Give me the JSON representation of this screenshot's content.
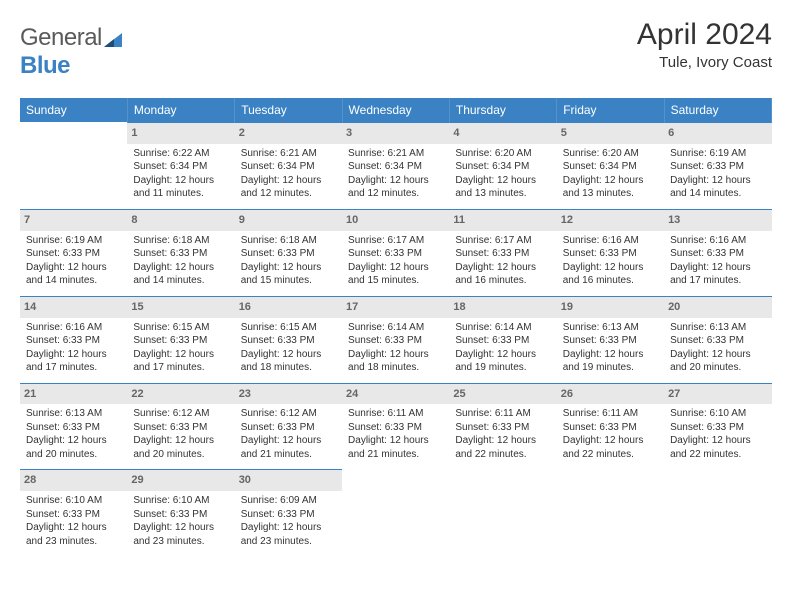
{
  "brand": {
    "word1": "General",
    "word2": "Blue"
  },
  "title": "April 2024",
  "location": "Tule, Ivory Coast",
  "colors": {
    "header_bg": "#3b82c4",
    "header_text": "#ffffff",
    "daynum_bg": "#e8e8e8",
    "daynum_text": "#666666",
    "border": "#3b82c4",
    "body_text": "#333333",
    "logo_gray": "#5a5a5a",
    "logo_blue": "#3b82c4",
    "page_bg": "#ffffff"
  },
  "fonts": {
    "title_pt": 30,
    "location_pt": 15,
    "weekday_pt": 12,
    "daynum_pt": 11,
    "cell_pt": 10
  },
  "weekdays": [
    "Sunday",
    "Monday",
    "Tuesday",
    "Wednesday",
    "Thursday",
    "Friday",
    "Saturday"
  ],
  "weeks": [
    [
      null,
      {
        "n": "1",
        "sunrise": "6:22 AM",
        "sunset": "6:34 PM",
        "daylight": "12 hours and 11 minutes."
      },
      {
        "n": "2",
        "sunrise": "6:21 AM",
        "sunset": "6:34 PM",
        "daylight": "12 hours and 12 minutes."
      },
      {
        "n": "3",
        "sunrise": "6:21 AM",
        "sunset": "6:34 PM",
        "daylight": "12 hours and 12 minutes."
      },
      {
        "n": "4",
        "sunrise": "6:20 AM",
        "sunset": "6:34 PM",
        "daylight": "12 hours and 13 minutes."
      },
      {
        "n": "5",
        "sunrise": "6:20 AM",
        "sunset": "6:34 PM",
        "daylight": "12 hours and 13 minutes."
      },
      {
        "n": "6",
        "sunrise": "6:19 AM",
        "sunset": "6:33 PM",
        "daylight": "12 hours and 14 minutes."
      }
    ],
    [
      {
        "n": "7",
        "sunrise": "6:19 AM",
        "sunset": "6:33 PM",
        "daylight": "12 hours and 14 minutes."
      },
      {
        "n": "8",
        "sunrise": "6:18 AM",
        "sunset": "6:33 PM",
        "daylight": "12 hours and 14 minutes."
      },
      {
        "n": "9",
        "sunrise": "6:18 AM",
        "sunset": "6:33 PM",
        "daylight": "12 hours and 15 minutes."
      },
      {
        "n": "10",
        "sunrise": "6:17 AM",
        "sunset": "6:33 PM",
        "daylight": "12 hours and 15 minutes."
      },
      {
        "n": "11",
        "sunrise": "6:17 AM",
        "sunset": "6:33 PM",
        "daylight": "12 hours and 16 minutes."
      },
      {
        "n": "12",
        "sunrise": "6:16 AM",
        "sunset": "6:33 PM",
        "daylight": "12 hours and 16 minutes."
      },
      {
        "n": "13",
        "sunrise": "6:16 AM",
        "sunset": "6:33 PM",
        "daylight": "12 hours and 17 minutes."
      }
    ],
    [
      {
        "n": "14",
        "sunrise": "6:16 AM",
        "sunset": "6:33 PM",
        "daylight": "12 hours and 17 minutes."
      },
      {
        "n": "15",
        "sunrise": "6:15 AM",
        "sunset": "6:33 PM",
        "daylight": "12 hours and 17 minutes."
      },
      {
        "n": "16",
        "sunrise": "6:15 AM",
        "sunset": "6:33 PM",
        "daylight": "12 hours and 18 minutes."
      },
      {
        "n": "17",
        "sunrise": "6:14 AM",
        "sunset": "6:33 PM",
        "daylight": "12 hours and 18 minutes."
      },
      {
        "n": "18",
        "sunrise": "6:14 AM",
        "sunset": "6:33 PM",
        "daylight": "12 hours and 19 minutes."
      },
      {
        "n": "19",
        "sunrise": "6:13 AM",
        "sunset": "6:33 PM",
        "daylight": "12 hours and 19 minutes."
      },
      {
        "n": "20",
        "sunrise": "6:13 AM",
        "sunset": "6:33 PM",
        "daylight": "12 hours and 20 minutes."
      }
    ],
    [
      {
        "n": "21",
        "sunrise": "6:13 AM",
        "sunset": "6:33 PM",
        "daylight": "12 hours and 20 minutes."
      },
      {
        "n": "22",
        "sunrise": "6:12 AM",
        "sunset": "6:33 PM",
        "daylight": "12 hours and 20 minutes."
      },
      {
        "n": "23",
        "sunrise": "6:12 AM",
        "sunset": "6:33 PM",
        "daylight": "12 hours and 21 minutes."
      },
      {
        "n": "24",
        "sunrise": "6:11 AM",
        "sunset": "6:33 PM",
        "daylight": "12 hours and 21 minutes."
      },
      {
        "n": "25",
        "sunrise": "6:11 AM",
        "sunset": "6:33 PM",
        "daylight": "12 hours and 22 minutes."
      },
      {
        "n": "26",
        "sunrise": "6:11 AM",
        "sunset": "6:33 PM",
        "daylight": "12 hours and 22 minutes."
      },
      {
        "n": "27",
        "sunrise": "6:10 AM",
        "sunset": "6:33 PM",
        "daylight": "12 hours and 22 minutes."
      }
    ],
    [
      {
        "n": "28",
        "sunrise": "6:10 AM",
        "sunset": "6:33 PM",
        "daylight": "12 hours and 23 minutes."
      },
      {
        "n": "29",
        "sunrise": "6:10 AM",
        "sunset": "6:33 PM",
        "daylight": "12 hours and 23 minutes."
      },
      {
        "n": "30",
        "sunrise": "6:09 AM",
        "sunset": "6:33 PM",
        "daylight": "12 hours and 23 minutes."
      },
      null,
      null,
      null,
      null
    ]
  ],
  "cell_labels": {
    "sunrise": "Sunrise: ",
    "sunset": "Sunset: ",
    "daylight": "Daylight: "
  }
}
